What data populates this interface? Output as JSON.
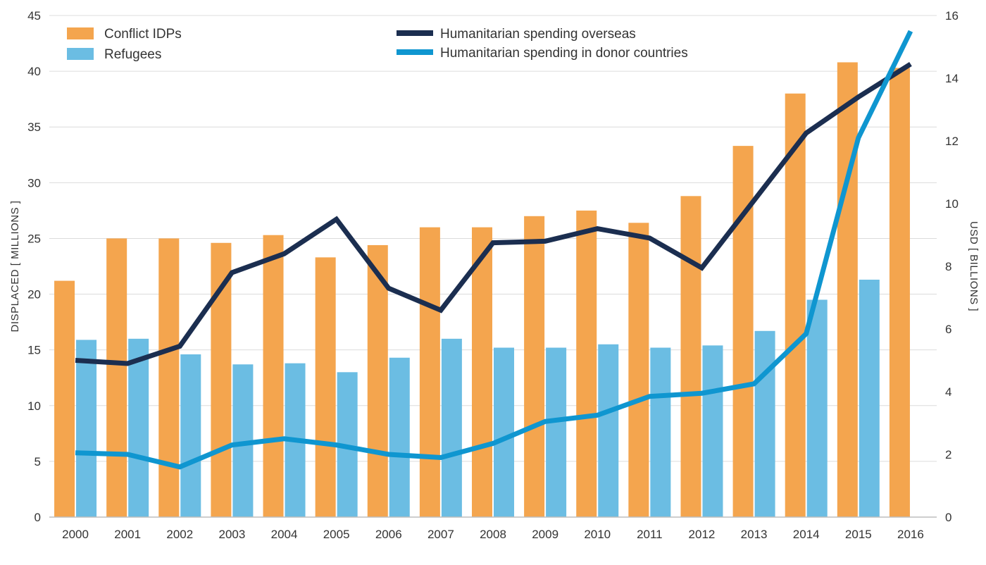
{
  "chart_data": {
    "type": "bar+line",
    "title": "",
    "categories": [
      "2000",
      "2001",
      "2002",
      "2003",
      "2004",
      "2005",
      "2006",
      "2007",
      "2008",
      "2009",
      "2010",
      "2011",
      "2012",
      "2013",
      "2014",
      "2015",
      "2016"
    ],
    "ylabel_left": "DISPLACED [ MILLIONS ]",
    "ylabel_right": "USD [ BILLIONS ]",
    "ylim_left": [
      0,
      45
    ],
    "ylim_right": [
      0,
      16
    ],
    "yticks_left": [
      "0",
      "5",
      "10",
      "15",
      "20",
      "25",
      "30",
      "35",
      "40",
      "45"
    ],
    "yticks_right": [
      "0",
      "2",
      "4",
      "6",
      "8",
      "10",
      "12",
      "14",
      "16"
    ],
    "grid": true,
    "legend_position": "top",
    "bar_series": [
      {
        "name": "Conflict IDPs",
        "color": "#F4A54E",
        "axis": "left",
        "values": [
          21.2,
          25.0,
          25.0,
          24.6,
          25.3,
          23.3,
          24.4,
          26.0,
          26.0,
          27.0,
          27.5,
          26.4,
          28.8,
          33.3,
          38.0,
          40.8,
          40.3
        ]
      },
      {
        "name": "Refugees",
        "color": "#6BBDE3",
        "axis": "left",
        "values": [
          15.9,
          16.0,
          14.6,
          13.7,
          13.8,
          13.0,
          14.3,
          16.0,
          15.2,
          15.2,
          15.5,
          15.2,
          15.4,
          16.7,
          19.5,
          21.3,
          null
        ]
      }
    ],
    "line_series": [
      {
        "name": "Humanitarian spending overseas",
        "color": "#1B2E50",
        "axis": "right",
        "values": [
          5.0,
          4.9,
          5.45,
          7.8,
          8.4,
          9.5,
          7.3,
          6.6,
          8.75,
          8.8,
          9.2,
          8.9,
          7.95,
          10.1,
          12.25,
          13.4,
          14.45
        ]
      },
      {
        "name": "Humanitarian spending in donor countries",
        "color": "#0F96D0",
        "axis": "right",
        "values": [
          2.05,
          2.0,
          1.6,
          2.3,
          2.5,
          2.3,
          2.0,
          1.9,
          2.35,
          3.05,
          3.25,
          3.85,
          3.95,
          4.25,
          5.85,
          12.1,
          15.5
        ]
      }
    ]
  }
}
